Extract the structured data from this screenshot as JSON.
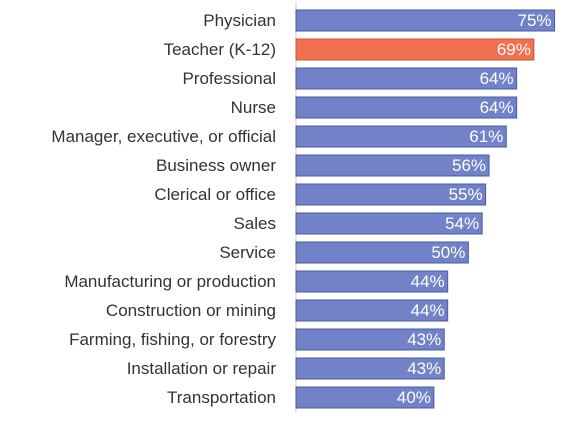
{
  "chart_data": {
    "type": "bar",
    "orientation": "horizontal",
    "categories": [
      "Physician",
      "Teacher (K-12)",
      "Professional",
      "Nurse",
      "Manager, executive, or official",
      "Business owner",
      "Clerical or office",
      "Sales",
      "Service",
      "Manufacturing or production",
      "Construction or mining",
      "Farming, fishing, or forestry",
      "Installation or repair",
      "Transportation"
    ],
    "values": [
      75,
      69,
      64,
      64,
      61,
      56,
      55,
      54,
      50,
      44,
      44,
      43,
      43,
      40
    ],
    "value_labels": [
      "75%",
      "69%",
      "64%",
      "64%",
      "61%",
      "56%",
      "55%",
      "54%",
      "50%",
      "44%",
      "44%",
      "43%",
      "43%",
      "40%"
    ],
    "highlight_index": 1,
    "xlim": [
      0,
      76
    ],
    "grid": false,
    "legend": "none",
    "colors": {
      "bar": "#7282c8",
      "bar_border": "#4b5aa3",
      "highlight": "#f0704f",
      "highlight_border": "#c8553a",
      "axis": "#c8c8c8"
    }
  }
}
